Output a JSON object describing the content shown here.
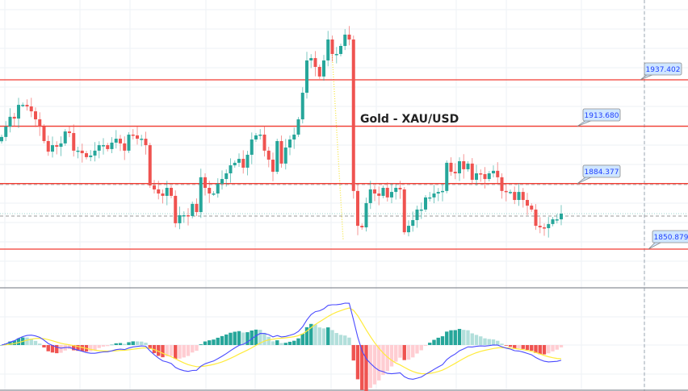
{
  "chart_data": {
    "type": "candlestick",
    "title": "Gold - XAU/USD",
    "ylim": [
      1848,
      1978
    ],
    "levels": [
      {
        "label": "1937.402",
        "value": 1937.402
      },
      {
        "label": "1913.680",
        "value": 1913.68
      },
      {
        "label": "1884.377",
        "value": 1884.377
      },
      {
        "label": "1850.879",
        "value": 1850.879
      }
    ],
    "closes": [
      1908.2,
      1913.5,
      1918.5,
      1917.6,
      1924.6,
      1924.6,
      1923.8,
      1921.3,
      1917.2,
      1913.5,
      1906.1,
      1900.7,
      1904.0,
      1903.2,
      1904.9,
      1911.0,
      1910.2,
      1901.2,
      1901.2,
      1899.9,
      1897.9,
      1898.7,
      1901.2,
      1904.0,
      1904.0,
      1902.0,
      1905.3,
      1907.3,
      1904.9,
      1901.2,
      1909.4,
      1909.0,
      1907.3,
      1907.3,
      1904.0,
      1883.4,
      1881.4,
      1879.3,
      1878.1,
      1882.2,
      1878.1,
      1864.1,
      1868.2,
      1868.2,
      1867.8,
      1874.0,
      1869.8,
      1887.6,
      1882.2,
      1879.3,
      1879.3,
      1884.3,
      1886.7,
      1889.6,
      1893.7,
      1895.0,
      1897.0,
      1892.5,
      1899.1,
      1906.9,
      1909.0,
      1909.4,
      1901.2,
      1896.6,
      1890.4,
      1906.1,
      1894.6,
      1902.8,
      1906.9,
      1909.4,
      1917.2,
      1930.8,
      1947.3,
      1948.5,
      1944.0,
      1939.1,
      1947.3,
      1958.0,
      1950.6,
      1950.6,
      1954.7,
      1960.5,
      1958.0,
      1880.6,
      1862.8,
      1862.0,
      1874.4,
      1881.4,
      1879.3,
      1878.1,
      1882.2,
      1877.3,
      1880.1,
      1882.2,
      1881.4,
      1859.5,
      1862.8,
      1865.7,
      1871.1,
      1871.1,
      1877.3,
      1877.3,
      1879.3,
      1880.1,
      1880.6,
      1895.0,
      1890.4,
      1889.6,
      1895.8,
      1891.7,
      1894.6,
      1886.3,
      1889.6,
      1889.2,
      1886.7,
      1889.6,
      1890.9,
      1887.6,
      1880.6,
      1880.1,
      1880.1,
      1876.0,
      1880.1,
      1876.0,
      1873.1,
      1871.1,
      1862.8,
      1862.0,
      1861.6,
      1863.7,
      1866.1,
      1866.1,
      1869.0
    ],
    "first_open": 1906.0,
    "indicator": {
      "type": "macd",
      "fast": 12,
      "slow": 26,
      "signal": 9
    },
    "colors": {
      "up": "#26a69a",
      "down": "#ef5350",
      "level": "#f23b30",
      "macd": "#4a4aff",
      "signal": "#ffeb3b",
      "hist_up": "#26a69a",
      "hist_up_weak": "#b2dfdb",
      "hist_down": "#ef5350",
      "hist_down_weak": "#ffcdd2"
    }
  }
}
